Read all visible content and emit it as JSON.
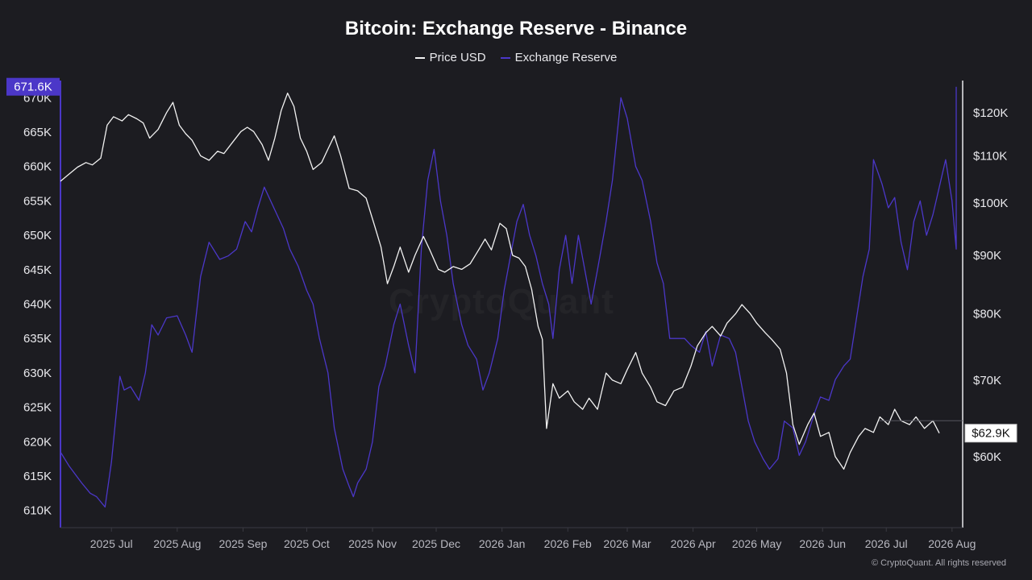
{
  "title": "Bitcoin: Exchange Reserve - Binance",
  "legend": [
    {
      "label": "Price USD",
      "color": "#f2f2f2"
    },
    {
      "label": "Exchange Reserve",
      "color": "#4b37c8"
    }
  ],
  "watermark": "CryptoQuant",
  "copyright": "© CryptoQuant. All rights reserved",
  "chart_data": {
    "type": "line",
    "title": "Bitcoin: Exchange Reserve - Binance",
    "x_ticks": [
      "2025 Jul",
      "2025 Aug",
      "2025 Sep",
      "2025 Oct",
      "2025 Nov",
      "2025 Dec",
      "2026 Jan",
      "2026 Feb",
      "2026 Mar",
      "2026 Apr",
      "2026 May",
      "2026 Jun",
      "2026 Jul",
      "2026 Aug"
    ],
    "x_start": "2025-06-21",
    "x_end": "2026-08-20",
    "left_axis": {
      "ticks": [
        "610K",
        "615K",
        "620K",
        "625K",
        "630K",
        "635K",
        "640K",
        "645K",
        "650K",
        "655K",
        "660K",
        "665K",
        "670K"
      ],
      "range": [
        607500,
        672500
      ],
      "badge": "671.6K",
      "badge_color": "#4b37c8"
    },
    "right_axis": {
      "ticks": [
        "$60K",
        "$70K",
        "$80K",
        "$90K",
        "$100K",
        "$110K",
        "$120K"
      ],
      "range": [
        52000,
        128000
      ],
      "scale": "log",
      "badge": "$62.9K"
    },
    "series": [
      {
        "name": "Exchange Reserve",
        "axis": "left",
        "color": "#4b37c8",
        "points": [
          [
            "2025-06-21",
            618500
          ],
          [
            "2025-06-25",
            616500
          ],
          [
            "2025-07-01",
            614000
          ],
          [
            "2025-07-05",
            612500
          ],
          [
            "2025-07-08",
            612000
          ],
          [
            "2025-07-12",
            610500
          ],
          [
            "2025-07-15",
            617000
          ],
          [
            "2025-07-19",
            629500
          ],
          [
            "2025-07-21",
            627500
          ],
          [
            "2025-07-24",
            628000
          ],
          [
            "2025-07-28",
            626000
          ],
          [
            "2025-07-31",
            630000
          ],
          [
            "2025-08-03",
            637000
          ],
          [
            "2025-08-06",
            635500
          ],
          [
            "2025-08-10",
            638000
          ],
          [
            "2025-08-15",
            638300
          ],
          [
            "2025-08-19",
            635500
          ],
          [
            "2025-08-22",
            633000
          ],
          [
            "2025-08-26",
            644000
          ],
          [
            "2025-08-30",
            649000
          ],
          [
            "2025-09-04",
            646500
          ],
          [
            "2025-09-08",
            647000
          ],
          [
            "2025-09-12",
            648000
          ],
          [
            "2025-09-16",
            652000
          ],
          [
            "2025-09-19",
            650500
          ],
          [
            "2025-09-22",
            654000
          ],
          [
            "2025-09-25",
            657000
          ],
          [
            "2025-09-28",
            655000
          ],
          [
            "2025-10-01",
            653000
          ],
          [
            "2025-10-04",
            651000
          ],
          [
            "2025-10-07",
            648000
          ],
          [
            "2025-10-11",
            645500
          ],
          [
            "2025-10-15",
            642000
          ],
          [
            "2025-10-18",
            640000
          ],
          [
            "2025-10-21",
            635000
          ],
          [
            "2025-10-25",
            630000
          ],
          [
            "2025-10-28",
            622000
          ],
          [
            "2025-11-01",
            616000
          ],
          [
            "2025-11-04",
            613500
          ],
          [
            "2025-11-06",
            612000
          ],
          [
            "2025-11-08",
            614000
          ],
          [
            "2025-11-12",
            616000
          ],
          [
            "2025-11-15",
            620000
          ],
          [
            "2025-11-18",
            628000
          ],
          [
            "2025-11-21",
            631000
          ],
          [
            "2025-11-25",
            637000
          ],
          [
            "2025-11-28",
            640000
          ],
          [
            "2025-12-02",
            634000
          ],
          [
            "2025-12-05",
            630000
          ],
          [
            "2025-12-08",
            648000
          ],
          [
            "2025-12-11",
            658000
          ],
          [
            "2025-12-14",
            662500
          ],
          [
            "2025-12-17",
            655000
          ],
          [
            "2025-12-20",
            650000
          ],
          [
            "2025-12-23",
            643000
          ],
          [
            "2025-12-27",
            637000
          ],
          [
            "2025-12-30",
            634000
          ],
          [
            "2026-01-03",
            632000
          ],
          [
            "2026-01-06",
            627500
          ],
          [
            "2026-01-09",
            630000
          ],
          [
            "2026-01-13",
            635000
          ],
          [
            "2026-01-16",
            642000
          ],
          [
            "2026-01-19",
            647000
          ],
          [
            "2026-01-22",
            652000
          ],
          [
            "2026-01-25",
            654500
          ],
          [
            "2026-01-28",
            650000
          ],
          [
            "2026-01-31",
            647000
          ],
          [
            "2026-02-03",
            643000
          ],
          [
            "2026-02-06",
            640000
          ],
          [
            "2026-02-08",
            635000
          ],
          [
            "2026-02-11",
            645000
          ],
          [
            "2026-02-14",
            650000
          ],
          [
            "2026-02-17",
            643000
          ],
          [
            "2026-02-20",
            650000
          ],
          [
            "2026-02-23",
            645000
          ],
          [
            "2026-02-26",
            640000
          ],
          [
            "2026-03-01",
            645000
          ],
          [
            "2026-03-05",
            652000
          ],
          [
            "2026-03-08",
            658000
          ],
          [
            "2026-03-12",
            670000
          ],
          [
            "2026-03-15",
            667000
          ],
          [
            "2026-03-19",
            660000
          ],
          [
            "2026-03-22",
            658000
          ],
          [
            "2026-03-26",
            652000
          ],
          [
            "2026-03-29",
            646000
          ],
          [
            "2026-04-01",
            643000
          ],
          [
            "2026-04-04",
            635000
          ],
          [
            "2026-04-07",
            635000
          ],
          [
            "2026-04-11",
            635000
          ],
          [
            "2026-04-14",
            634000
          ],
          [
            "2026-04-18",
            633000
          ],
          [
            "2026-04-21",
            636000
          ],
          [
            "2026-04-24",
            631000
          ],
          [
            "2026-04-28",
            635500
          ],
          [
            "2026-05-02",
            635000
          ],
          [
            "2026-05-05",
            633000
          ],
          [
            "2026-05-08",
            628000
          ],
          [
            "2026-05-11",
            623000
          ],
          [
            "2026-05-14",
            620000
          ],
          [
            "2026-05-18",
            617500
          ],
          [
            "2026-05-21",
            616000
          ],
          [
            "2026-05-25",
            617500
          ],
          [
            "2026-05-28",
            623000
          ],
          [
            "2026-06-01",
            622000
          ],
          [
            "2026-06-04",
            618000
          ],
          [
            "2026-06-07",
            620000
          ],
          [
            "2026-06-11",
            624000
          ],
          [
            "2026-06-14",
            626500
          ],
          [
            "2026-06-18",
            626000
          ],
          [
            "2026-06-21",
            629000
          ],
          [
            "2026-06-25",
            631000
          ],
          [
            "2026-06-28",
            632000
          ],
          [
            "2026-07-01",
            638000
          ],
          [
            "2026-07-04",
            644000
          ],
          [
            "2026-07-07",
            648000
          ],
          [
            "2026-07-09",
            661000
          ],
          [
            "2026-07-13",
            657500
          ],
          [
            "2026-07-16",
            654000
          ],
          [
            "2026-07-19",
            655500
          ],
          [
            "2026-07-22",
            649000
          ],
          [
            "2026-07-25",
            645000
          ],
          [
            "2026-07-28",
            652000
          ],
          [
            "2026-07-31",
            655000
          ],
          [
            "2026-08-03",
            650000
          ],
          [
            "2026-08-06",
            653000
          ],
          [
            "2026-08-09",
            657000
          ],
          [
            "2026-08-12",
            661000
          ],
          [
            "2026-08-15",
            655000
          ],
          [
            "2026-08-17",
            648000
          ],
          [
            "2026-08-20",
            658000
          ],
          [
            "2026-08-24",
            654000
          ],
          [
            "2026-08-27",
            660000
          ],
          [
            "2026-08-30",
            666000
          ],
          [
            "2026-09-02",
            671600
          ]
        ]
      },
      {
        "name": "Price USD",
        "axis": "right",
        "color": "#f2f2f2",
        "points": [
          [
            "2025-06-21",
            104500
          ],
          [
            "2025-06-25",
            106000
          ],
          [
            "2025-06-29",
            107500
          ],
          [
            "2025-07-03",
            108500
          ],
          [
            "2025-07-06",
            108000
          ],
          [
            "2025-07-10",
            109500
          ],
          [
            "2025-07-13",
            117000
          ],
          [
            "2025-07-16",
            119000
          ],
          [
            "2025-07-20",
            118000
          ],
          [
            "2025-07-23",
            119500
          ],
          [
            "2025-07-27",
            118500
          ],
          [
            "2025-07-30",
            117500
          ],
          [
            "2025-08-02",
            114000
          ],
          [
            "2025-08-06",
            116000
          ],
          [
            "2025-08-10",
            120000
          ],
          [
            "2025-08-13",
            122500
          ],
          [
            "2025-08-16",
            117000
          ],
          [
            "2025-08-19",
            115000
          ],
          [
            "2025-08-22",
            113500
          ],
          [
            "2025-08-26",
            110000
          ],
          [
            "2025-08-30",
            109000
          ],
          [
            "2025-09-03",
            111000
          ],
          [
            "2025-09-06",
            110500
          ],
          [
            "2025-09-10",
            113000
          ],
          [
            "2025-09-14",
            115500
          ],
          [
            "2025-09-17",
            116500
          ],
          [
            "2025-09-20",
            115500
          ],
          [
            "2025-09-24",
            112500
          ],
          [
            "2025-09-27",
            109000
          ],
          [
            "2025-09-30",
            114000
          ],
          [
            "2025-10-03",
            120500
          ],
          [
            "2025-10-06",
            124800
          ],
          [
            "2025-10-09",
            121500
          ],
          [
            "2025-10-12",
            114000
          ],
          [
            "2025-10-15",
            111000
          ],
          [
            "2025-10-18",
            107000
          ],
          [
            "2025-10-22",
            108500
          ],
          [
            "2025-10-25",
            111500
          ],
          [
            "2025-10-28",
            114500
          ],
          [
            "2025-10-31",
            110000
          ],
          [
            "2025-11-04",
            103000
          ],
          [
            "2025-11-08",
            102500
          ],
          [
            "2025-11-12",
            101000
          ],
          [
            "2025-11-16",
            95500
          ],
          [
            "2025-11-19",
            91500
          ],
          [
            "2025-11-22",
            85000
          ],
          [
            "2025-11-25",
            88000
          ],
          [
            "2025-11-28",
            91500
          ],
          [
            "2025-12-02",
            87000
          ],
          [
            "2025-12-05",
            90000
          ],
          [
            "2025-12-09",
            93500
          ],
          [
            "2025-12-12",
            91000
          ],
          [
            "2025-12-16",
            87500
          ],
          [
            "2025-12-19",
            87000
          ],
          [
            "2025-12-23",
            88000
          ],
          [
            "2025-12-27",
            87500
          ],
          [
            "2025-12-31",
            88500
          ],
          [
            "2026-01-04",
            91000
          ],
          [
            "2026-01-07",
            93000
          ],
          [
            "2026-01-10",
            91000
          ],
          [
            "2026-01-14",
            96000
          ],
          [
            "2026-01-17",
            95000
          ],
          [
            "2026-01-20",
            90000
          ],
          [
            "2026-01-23",
            89500
          ],
          [
            "2026-01-26",
            88000
          ],
          [
            "2026-01-29",
            84000
          ],
          [
            "2026-02-01",
            78000
          ],
          [
            "2026-02-03",
            76000
          ],
          [
            "2026-02-05",
            63500
          ],
          [
            "2026-02-08",
            69500
          ],
          [
            "2026-02-11",
            67500
          ],
          [
            "2026-02-15",
            68500
          ],
          [
            "2026-02-18",
            67000
          ],
          [
            "2026-02-22",
            66000
          ],
          [
            "2026-02-25",
            67500
          ],
          [
            "2026-03-01",
            66000
          ],
          [
            "2026-03-05",
            71000
          ],
          [
            "2026-03-08",
            70000
          ],
          [
            "2026-03-12",
            69500
          ],
          [
            "2026-03-15",
            71500
          ],
          [
            "2026-03-19",
            74000
          ],
          [
            "2026-03-22",
            71000
          ],
          [
            "2026-03-26",
            69000
          ],
          [
            "2026-03-29",
            67000
          ],
          [
            "2026-04-02",
            66500
          ],
          [
            "2026-04-06",
            68500
          ],
          [
            "2026-04-10",
            69000
          ],
          [
            "2026-04-14",
            72000
          ],
          [
            "2026-04-17",
            75000
          ],
          [
            "2026-04-21",
            77000
          ],
          [
            "2026-04-24",
            78000
          ],
          [
            "2026-04-28",
            76500
          ],
          [
            "2026-05-01",
            78500
          ],
          [
            "2026-05-05",
            80000
          ],
          [
            "2026-05-08",
            81500
          ],
          [
            "2026-05-12",
            80000
          ],
          [
            "2026-05-15",
            78500
          ],
          [
            "2026-05-19",
            77000
          ],
          [
            "2026-05-22",
            76000
          ],
          [
            "2026-05-26",
            74500
          ],
          [
            "2026-05-29",
            71000
          ],
          [
            "2026-06-01",
            64000
          ],
          [
            "2026-06-04",
            61500
          ],
          [
            "2026-06-08",
            64000
          ],
          [
            "2026-06-11",
            65500
          ],
          [
            "2026-06-14",
            62500
          ],
          [
            "2026-06-18",
            63000
          ],
          [
            "2026-06-21",
            60000
          ],
          [
            "2026-06-25",
            58500
          ],
          [
            "2026-06-28",
            60500
          ],
          [
            "2026-07-02",
            62500
          ],
          [
            "2026-07-05",
            63500
          ],
          [
            "2026-07-09",
            63000
          ],
          [
            "2026-07-12",
            65000
          ],
          [
            "2026-07-16",
            64000
          ],
          [
            "2026-07-19",
            66000
          ],
          [
            "2026-07-22",
            64500
          ],
          [
            "2026-07-26",
            64000
          ],
          [
            "2026-07-29",
            65000
          ],
          [
            "2026-08-02",
            63500
          ],
          [
            "2026-08-06",
            64500
          ],
          [
            "2026-08-09",
            62900
          ]
        ]
      }
    ],
    "grid": false,
    "legend_position": "top-center"
  }
}
